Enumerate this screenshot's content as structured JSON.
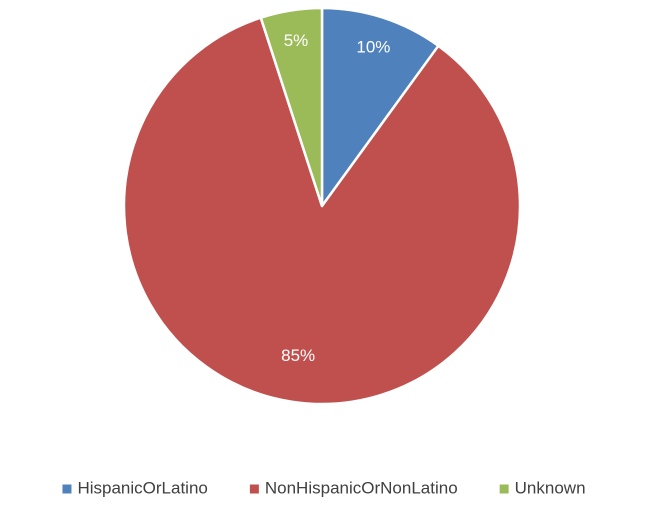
{
  "chart_data": {
    "type": "pie",
    "categories": [
      "HispanicOrLatino",
      "NonHispanicOrNonLatino",
      "Unknown"
    ],
    "values": [
      10,
      85,
      5
    ],
    "value_labels": [
      "10%",
      "85%",
      "5%"
    ],
    "colors": [
      "#4f81bd",
      "#c0504d",
      "#9bbb59"
    ],
    "legend": "bottom"
  }
}
